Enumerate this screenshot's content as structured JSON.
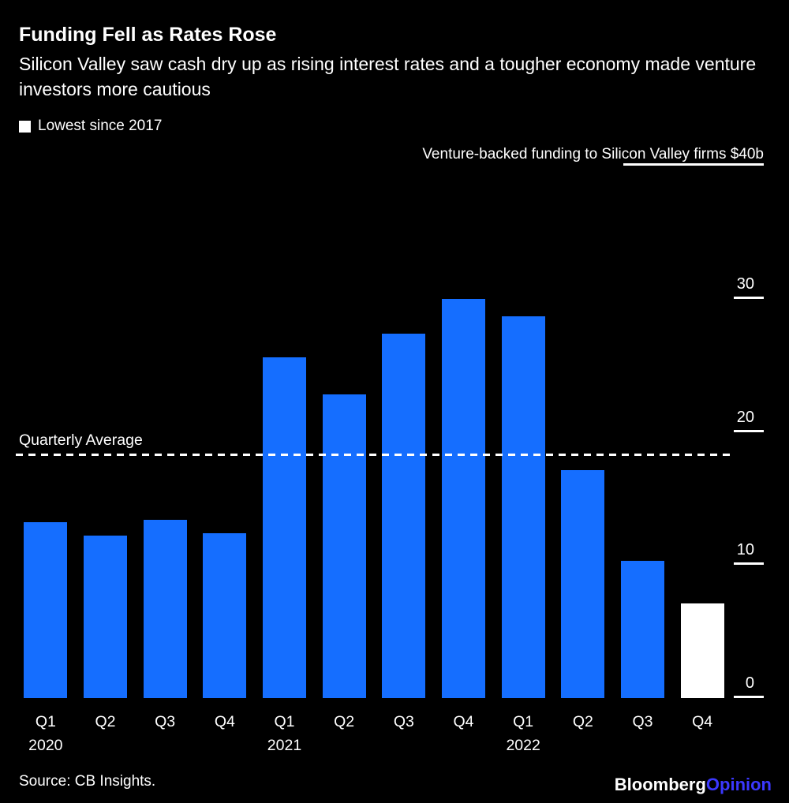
{
  "header": {
    "title": "Funding Fell as Rates Rose",
    "subtitle": "Silicon Valley saw cash dry up as rising interest rates and a tougher economy made venture investors more cautious"
  },
  "legend": {
    "label": "Lowest since 2017",
    "swatch_color": "#ffffff"
  },
  "chart_data": {
    "type": "bar",
    "title": "Venture-backed funding to Silicon Valley firms $40b",
    "xlabel": "",
    "ylabel": "Venture-backed funding to Silicon Valley firms, $b",
    "categories": [
      "Q1",
      "Q2",
      "Q3",
      "Q4",
      "Q1",
      "Q2",
      "Q3",
      "Q4",
      "Q1",
      "Q2",
      "Q3",
      "Q4"
    ],
    "year_labels": [
      {
        "index": 0,
        "label": "2020"
      },
      {
        "index": 4,
        "label": "2021"
      },
      {
        "index": 8,
        "label": "2022"
      }
    ],
    "values": [
      13.2,
      12.2,
      13.4,
      12.4,
      25.6,
      22.8,
      27.4,
      30.0,
      28.7,
      17.1,
      10.3,
      7.1
    ],
    "highlight_index": 11,
    "bar_color": "#156eff",
    "highlight_color": "#ffffff",
    "ylim": [
      0,
      40
    ],
    "yticks": [
      0,
      10,
      20,
      30
    ],
    "average_line": {
      "label": "Quarterly Average",
      "value": 18.2
    },
    "grid": false,
    "legend_position": "top-left",
    "legend_note": "white bar = Lowest since 2017"
  },
  "footer": {
    "source": "Source: CB Insights.",
    "brand": {
      "bloomberg": "Bloomberg",
      "opinion": "Opinion",
      "bloomberg_color": "#ffffff",
      "opinion_color": "#3b38ff"
    }
  }
}
